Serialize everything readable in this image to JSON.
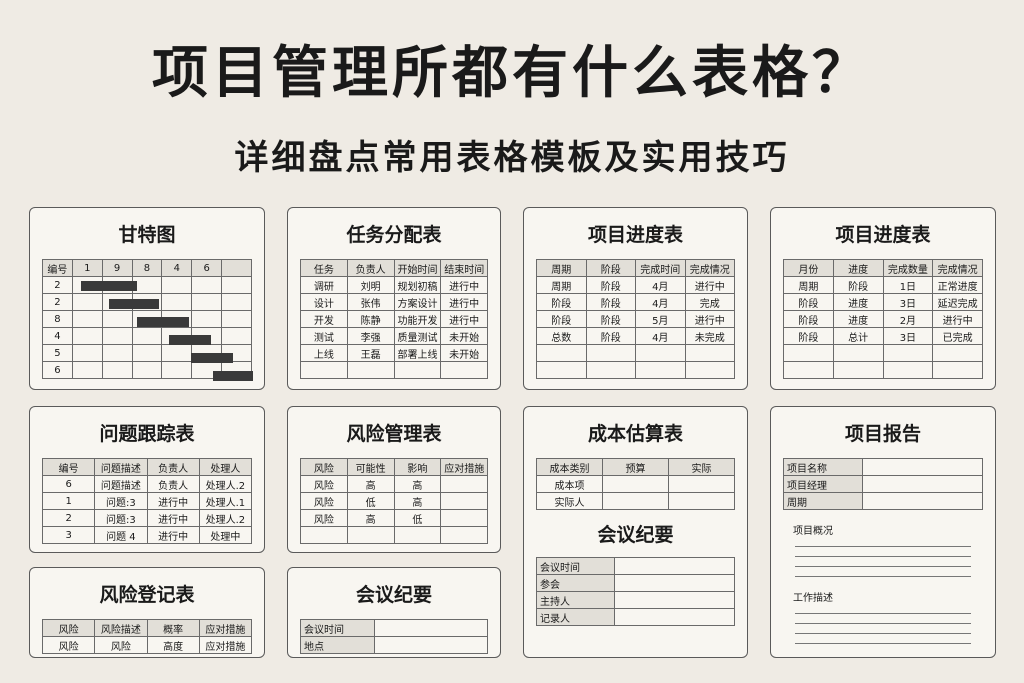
{
  "header": {
    "title": "项目管理所都有什么表格？",
    "subtitle": "详细盘点常用表格模板及实用技巧"
  },
  "cards": [
    {
      "title": "甘特图",
      "sections": [
        {
          "header": [
            "编号",
            "1",
            "9",
            "8",
            "4",
            "6",
            null
          ],
          "rows": [
            [
              "2",
              null,
              null,
              null,
              null,
              null,
              null
            ],
            [
              "2",
              null,
              null,
              null,
              null,
              null,
              null
            ],
            [
              "8",
              null,
              null,
              null,
              null,
              null,
              null
            ],
            [
              "4",
              null,
              null,
              null,
              null,
              null,
              null
            ],
            [
              "5",
              null,
              null,
              null,
              null,
              null,
              null
            ],
            [
              "6",
              null,
              null,
              null,
              null,
              null,
              null
            ]
          ]
        }
      ]
    },
    {
      "title": "任务分配表",
      "sections": [
        {
          "header": [
            "任务",
            "负责人",
            "开始时间",
            "结束时间"
          ],
          "rows": [
            [
              "调研",
              "刘明",
              "规划初稿",
              "进行中"
            ],
            [
              "设计",
              "张伟",
              "方案设计",
              "进行中"
            ],
            [
              "开发",
              "陈静",
              "功能开发",
              "进行中"
            ],
            [
              "测试",
              "李强",
              "质量测试",
              "未开始"
            ],
            [
              "上线",
              "王磊",
              "部署上线",
              "未开始"
            ],
            [
              null,
              null,
              null,
              null
            ]
          ]
        }
      ]
    },
    {
      "title": "项目进度表",
      "sections": [
        {
          "header": [
            "周期",
            "阶段",
            "完成时间",
            "完成情况"
          ],
          "rows": [
            [
              "周期",
              "阶段",
              "4月",
              "进行中"
            ],
            [
              "阶段",
              "阶段",
              "4月",
              "完成"
            ],
            [
              "阶段",
              "阶段",
              "5月",
              "进行中"
            ],
            [
              "总数",
              "阶段",
              "4月",
              "未完成"
            ],
            [
              null,
              null,
              null,
              null
            ],
            [
              null,
              null,
              null,
              null
            ]
          ]
        }
      ]
    },
    {
      "title": "项目进度表",
      "sections": [
        {
          "header": [
            "月份",
            "进度",
            "完成数量",
            "完成情况"
          ],
          "rows": [
            [
              "周期",
              "阶段",
              "1日",
              "正常进度"
            ],
            [
              "阶段",
              "进度",
              "3日",
              "延迟完成"
            ],
            [
              "阶段",
              "进度",
              "2月",
              "进行中"
            ],
            [
              "阶段",
              "总计",
              "3日",
              "已完成"
            ],
            [
              null,
              null,
              null,
              null
            ],
            [
              null,
              null,
              null,
              null
            ]
          ]
        }
      ]
    },
    {
      "title": "问题跟踪表",
      "sections": [
        {
          "header": [
            "编号",
            "问题描述",
            "负责人",
            "处理人"
          ],
          "rows": [
            [
              "6",
              "问题描述",
              "负责人",
              "处理人.2"
            ],
            [
              "1",
              "问题:3",
              "进行中",
              "处理人.1"
            ],
            [
              "2",
              "问题:3",
              "进行中",
              "处理人.2"
            ],
            [
              "3",
              "问题 4",
              "进行中",
              "处理中"
            ]
          ]
        }
      ]
    },
    {
      "title": "风险管理表",
      "sections": [
        {
          "header": [
            "风险",
            "可能性",
            "影响",
            "应对措施"
          ],
          "rows": [
            [
              "风险",
              "高",
              "高",
              null
            ],
            [
              "风险",
              "低",
              "高",
              null
            ],
            [
              "风险",
              "高",
              "低",
              null
            ],
            [
              null,
              null,
              null,
              null
            ]
          ]
        }
      ]
    },
    {
      "title": "成本估算表",
      "sections": [
        {
          "header": [
            "成本类别",
            "预算",
            "实际"
          ],
          "rows": [
            [
              "成本项",
              null,
              null
            ],
            [
              "实际人",
              null,
              null
            ]
          ]
        },
        {
          "title": "会议纪要",
          "keyed": true,
          "rows": [
            [
              "会议时间",
              null
            ],
            [
              "参会",
              null
            ],
            [
              "主持人",
              null
            ],
            [
              "记录人",
              null
            ]
          ]
        }
      ]
    },
    {
      "title": "项目报告",
      "sections": [
        {
          "keyed": true,
          "rows": [
            [
              "项目名称",
              null
            ],
            [
              "项目经理",
              null
            ],
            [
              "周期",
              null
            ]
          ]
        },
        {
          "label": "项目概况"
        },
        {
          "label": "工作描述"
        }
      ]
    },
    {
      "title": "风险登记表",
      "sections": [
        {
          "header": [
            "风险",
            "风险描述",
            "概率",
            "应对措施"
          ],
          "rows": [
            [
              "风险",
              "风险",
              "高度",
              "应对措施"
            ]
          ]
        }
      ]
    },
    {
      "title": "会议纪要",
      "sections": [
        {
          "keyed": true,
          "rows": [
            [
              "会议时间",
              null
            ],
            [
              "地点",
              null
            ]
          ]
        }
      ]
    }
  ]
}
